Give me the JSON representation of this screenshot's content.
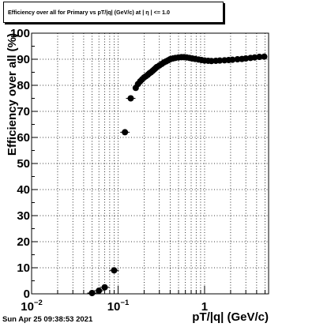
{
  "title": "Efficiency over all for Primary vs pT/|q| (GeV/c) at | η | <= 1.0",
  "timestamp": "Sun Apr 25 09:38:53 2021",
  "chart_data": {
    "type": "scatter",
    "title": "Efficiency over all for Primary vs pT/|q| (GeV/c) at | η | <= 1.0",
    "xlabel": "pT/|q| (GeV/c)",
    "ylabel": "Efficiency over all (%)",
    "xscale": "log",
    "xlim": [
      0.01,
      5.5
    ],
    "ylim": [
      0,
      100
    ],
    "grid": true,
    "y_ticks": [
      "0",
      "10",
      "20",
      "30",
      "40",
      "50",
      "60",
      "70",
      "80",
      "90",
      "100"
    ],
    "x_ticks": [
      {
        "value": 0.01,
        "base": "10",
        "exp": "−2"
      },
      {
        "value": 0.1,
        "base": "10",
        "exp": "−1"
      },
      {
        "value": 1,
        "base": "1",
        "exp": ""
      }
    ],
    "marker_color": "#000000",
    "x": [
      0.05,
      0.06,
      0.07,
      0.09,
      0.12,
      0.14,
      0.16,
      0.17,
      0.18,
      0.19,
      0.2,
      0.21,
      0.22,
      0.23,
      0.24,
      0.25,
      0.26,
      0.27,
      0.28,
      0.3,
      0.32,
      0.34,
      0.36,
      0.38,
      0.4,
      0.43,
      0.46,
      0.5,
      0.54,
      0.58,
      0.62,
      0.67,
      0.72,
      0.78,
      0.85,
      0.92,
      1.0,
      1.1,
      1.2,
      1.35,
      1.5,
      1.7,
      1.9,
      2.1,
      2.4,
      2.7,
      3.0,
      3.4,
      3.8,
      4.3,
      4.9
    ],
    "y": [
      0.3,
      1.2,
      2.5,
      9,
      62,
      75,
      79,
      80.5,
      81.5,
      82.3,
      83,
      83.5,
      84,
      84.6,
      85,
      85.5,
      86,
      86.5,
      87,
      87.6,
      88.2,
      88.8,
      89.2,
      89.6,
      90,
      90.3,
      90.5,
      90.7,
      90.8,
      90.8,
      90.7,
      90.5,
      90.3,
      90.1,
      89.9,
      89.7,
      89.5,
      89.4,
      89.3,
      89.4,
      89.5,
      89.6,
      89.7,
      89.8,
      90,
      90.1,
      90.3,
      90.5,
      90.7,
      90.9,
      91
    ]
  }
}
